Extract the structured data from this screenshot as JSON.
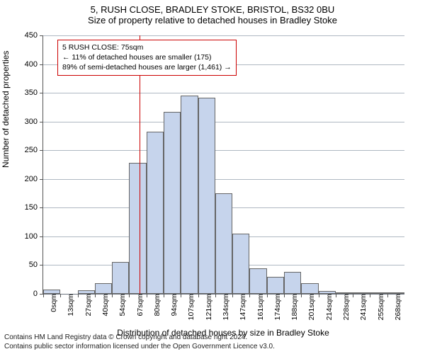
{
  "header": {
    "title_main": "5, RUSH CLOSE, BRADLEY STOKE, BRISTOL, BS32 0BU",
    "title_sub": "Size of property relative to detached houses in Bradley Stoke"
  },
  "chart": {
    "type": "bar",
    "ylabel": "Number of detached properties",
    "xlabel": "Distribution of detached houses by size in Bradley Stoke",
    "ylim": [
      0,
      450
    ],
    "ytick_step": 50,
    "yticks": [
      0,
      50,
      100,
      150,
      200,
      250,
      300,
      350,
      400,
      450
    ],
    "categories": [
      "0sqm",
      "13sqm",
      "27sqm",
      "40sqm",
      "54sqm",
      "67sqm",
      "80sqm",
      "94sqm",
      "107sqm",
      "121sqm",
      "134sqm",
      "147sqm",
      "161sqm",
      "174sqm",
      "188sqm",
      "201sqm",
      "214sqm",
      "228sqm",
      "241sqm",
      "255sqm",
      "268sqm"
    ],
    "values": [
      8,
      0,
      6,
      18,
      55,
      228,
      282,
      317,
      345,
      342,
      175,
      105,
      45,
      30,
      38,
      18,
      5,
      2,
      2,
      2,
      2
    ],
    "bar_fill": "#c6d4ec",
    "bar_stroke": "#666666",
    "background": "#ffffff",
    "grid_color": "#7a8899",
    "bar_width_ratio": 1.0,
    "reference_line": {
      "x_index": 5.6,
      "color": "#cc0000"
    },
    "info_box": {
      "line1": "5 RUSH CLOSE: 75sqm",
      "line2": "← 11% of detached houses are smaller (175)",
      "line3": "89% of semi-detached houses are larger (1,461) →",
      "border_color": "#cc0000"
    },
    "title_fontsize": 13,
    "label_fontsize": 12,
    "tick_fontsize": 11
  },
  "footer": {
    "line1": "Contains HM Land Registry data © Crown copyright and database right 2024.",
    "line2": "Contains public sector information licensed under the Open Government Licence v3.0."
  }
}
